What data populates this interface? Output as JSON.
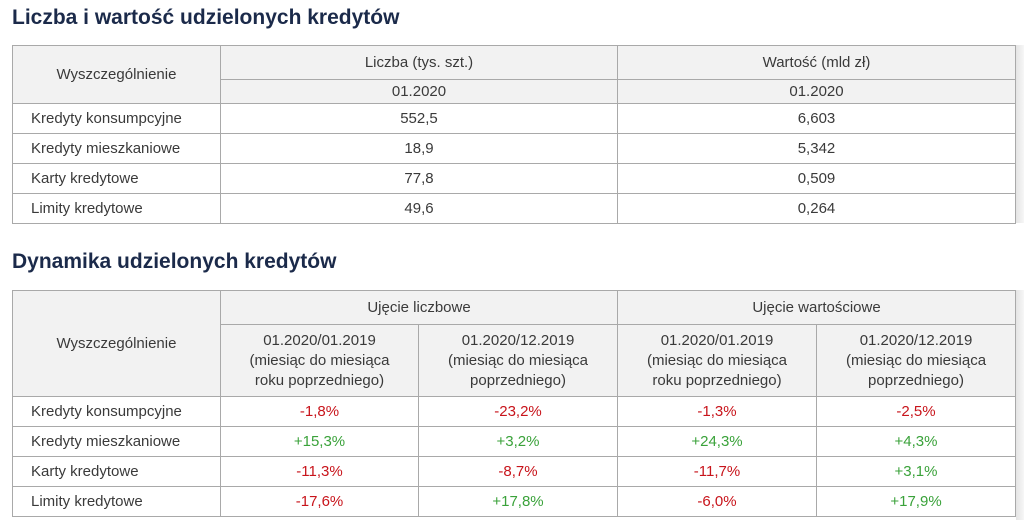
{
  "section1": {
    "title": "Liczba i wartość udzielonych kredytów",
    "row_header": "Wyszczególnienie",
    "columns": [
      "Liczba (tys. szt.)",
      "Wartość (mld zł)"
    ],
    "period": [
      "01.2020",
      "01.2020"
    ],
    "rows": [
      {
        "label": "Kredyty konsumpcyjne",
        "values": [
          "552,5",
          "6,603"
        ]
      },
      {
        "label": "Kredyty mieszkaniowe",
        "values": [
          "18,9",
          "5,342"
        ]
      },
      {
        "label": "Karty kredytowe",
        "values": [
          "77,8",
          "0,509"
        ]
      },
      {
        "label": "Limity kredytowe",
        "values": [
          "49,6",
          "0,264"
        ]
      }
    ]
  },
  "section2": {
    "title": "Dynamika udzielonych kredytów",
    "row_header": "Wyszczególnienie",
    "groups": [
      "Ujęcie liczbowe",
      "Ujęcie wartościowe"
    ],
    "subcolumns": [
      {
        "line1": "01.2020/01.2019",
        "line2": "(miesiąc do miesiąca",
        "line3": "roku poprzedniego)"
      },
      {
        "line1": "01.2020/12.2019",
        "line2": "(miesiąc do miesiąca",
        "line3": "poprzedniego)"
      },
      {
        "line1": "01.2020/01.2019",
        "line2": "(miesiąc do miesiąca",
        "line3": "roku poprzedniego)"
      },
      {
        "line1": "01.2020/12.2019",
        "line2": "(miesiąc do miesiąca",
        "line3": "poprzedniego)"
      }
    ],
    "rows": [
      {
        "label": "Kredyty konsumpcyjne",
        "values": [
          "-1,8%",
          "-23,2%",
          "-1,3%",
          "-2,5%"
        ]
      },
      {
        "label": "Kredyty mieszkaniowe",
        "values": [
          "+15,3%",
          "+3,2%",
          "+24,3%",
          "+4,3%"
        ]
      },
      {
        "label": "Karty kredytowe",
        "values": [
          "-11,3%",
          "-8,7%",
          "-11,7%",
          "+3,1%"
        ]
      },
      {
        "label": "Limity kredytowe",
        "values": [
          "-17,6%",
          "+17,8%",
          "-6,0%",
          "+17,9%"
        ]
      }
    ]
  },
  "colors": {
    "heading": "#1b2a4a",
    "negative": "#c8141b",
    "positive": "#3aa23a",
    "header_bg": "#f2f2f2",
    "border": "#a9a9a9"
  }
}
